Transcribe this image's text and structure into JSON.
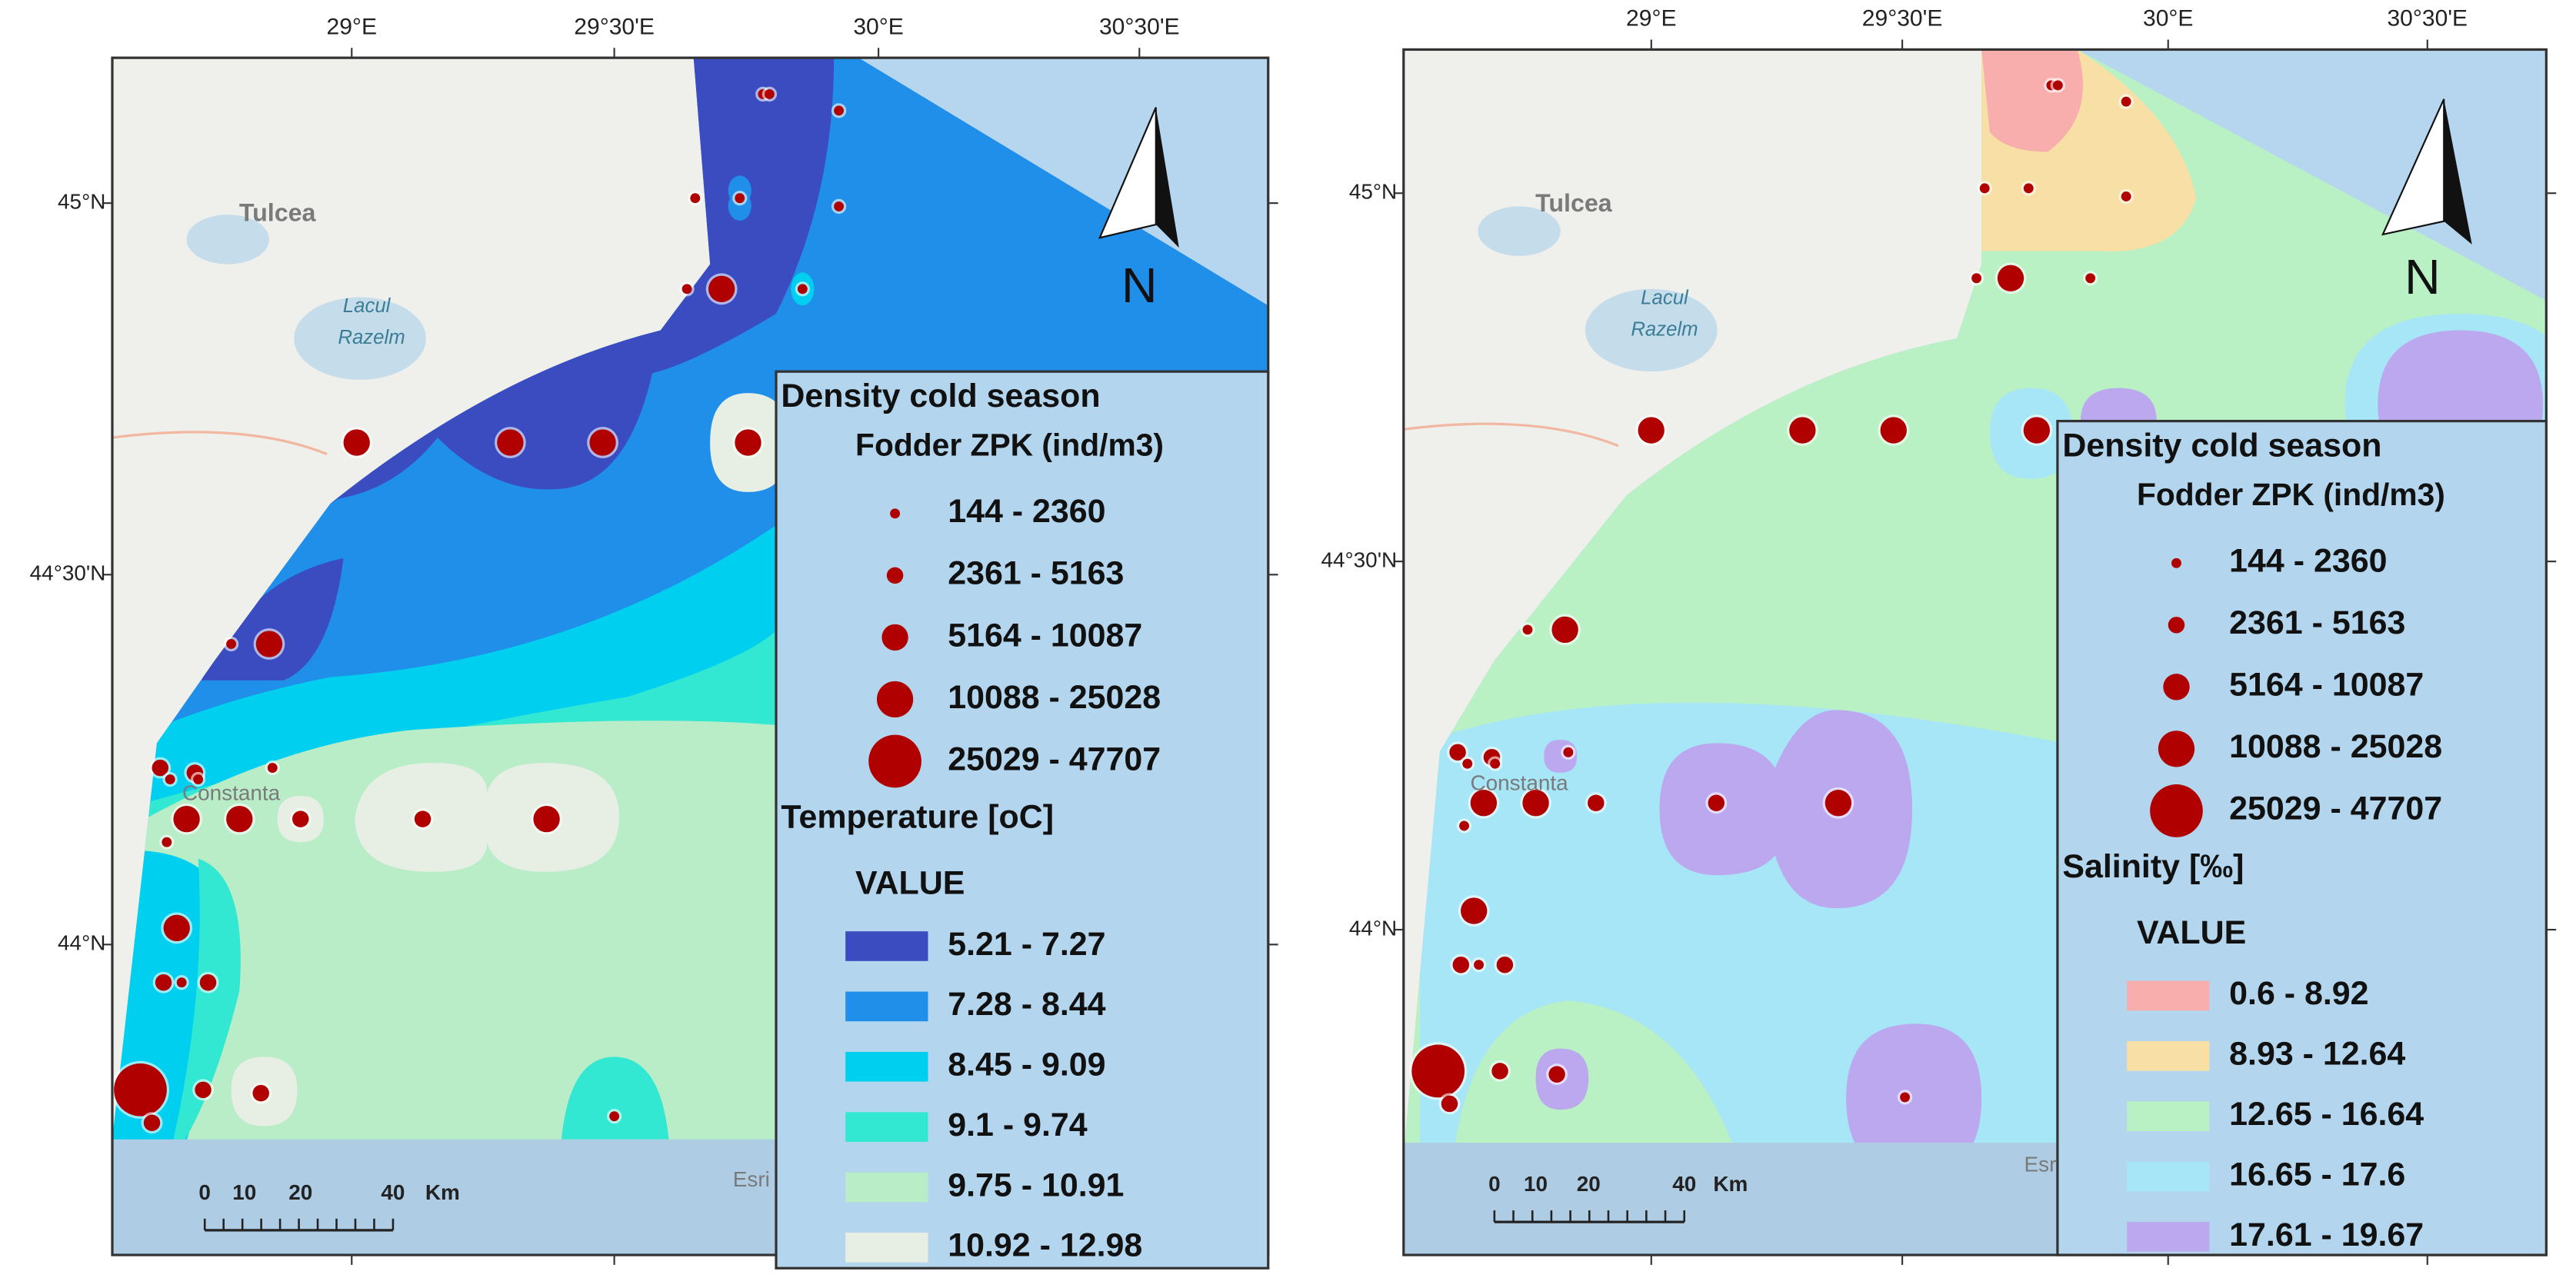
{
  "maps": [
    {
      "lon_ticks": [
        "29°E",
        "29°30'E",
        "30°E",
        "30°30'E"
      ],
      "lat_ticks": [
        "45°N",
        "44°30'N",
        "44°N"
      ],
      "places": [
        "Tulcea",
        "Lacul",
        "Razelm",
        "Constanta",
        "Esri"
      ],
      "north": "N",
      "scale": {
        "ticks": [
          0,
          10,
          20,
          40
        ],
        "unit": "Km"
      },
      "legend": {
        "title": "Density cold season",
        "size_title": "Fodder ZPK (ind/m3)",
        "size_classes": [
          "144 - 2360",
          "2361 - 5163",
          "5164 - 10087",
          "10088 - 25028",
          "25029 - 47707"
        ],
        "variable_title": "Temperature [oC]",
        "value_header": "VALUE",
        "classes": [
          {
            "label": "5.21 - 7.27",
            "color": "#3b4cc0"
          },
          {
            "label": "7.28 - 8.44",
            "color": "#1f8fea"
          },
          {
            "label": "8.45 - 9.09",
            "color": "#00cff0"
          },
          {
            "label": "9.1 - 9.74",
            "color": "#33e8d2"
          },
          {
            "label": "9.75 - 10.91",
            "color": "#b9edc7"
          },
          {
            "label": "10.92 - 12.98",
            "color": "#e7efe4"
          }
        ]
      }
    },
    {
      "lon_ticks": [
        "29°E",
        "29°30'E",
        "30°E",
        "30°30'E"
      ],
      "lat_ticks": [
        "45°N",
        "44°30'N",
        "44°N"
      ],
      "places": [
        "Tulcea",
        "Lacul",
        "Razelm",
        "Constanta",
        "Esri"
      ],
      "north": "N",
      "scale": {
        "ticks": [
          0,
          10,
          20,
          40
        ],
        "unit": "Km"
      },
      "legend": {
        "title": "Density cold season",
        "size_title": "Fodder ZPK (ind/m3)",
        "size_classes": [
          "144 - 2360",
          "2361 - 5163",
          "5164 - 10087",
          "10088 - 25028",
          "25029 - 47707"
        ],
        "variable_title": "Salinity [‰]",
        "value_header": "VALUE",
        "classes": [
          {
            "label": "0.6 - 8.92",
            "color": "#f9aeae"
          },
          {
            "label": "8.93 - 12.64",
            "color": "#f8dfa6"
          },
          {
            "label": "12.65 - 16.64",
            "color": "#b9f0c4"
          },
          {
            "label": "16.65 - 17.6",
            "color": "#a6e6f6"
          },
          {
            "label": "17.61 - 19.67",
            "color": "#bca8ef"
          }
        ]
      }
    }
  ]
}
